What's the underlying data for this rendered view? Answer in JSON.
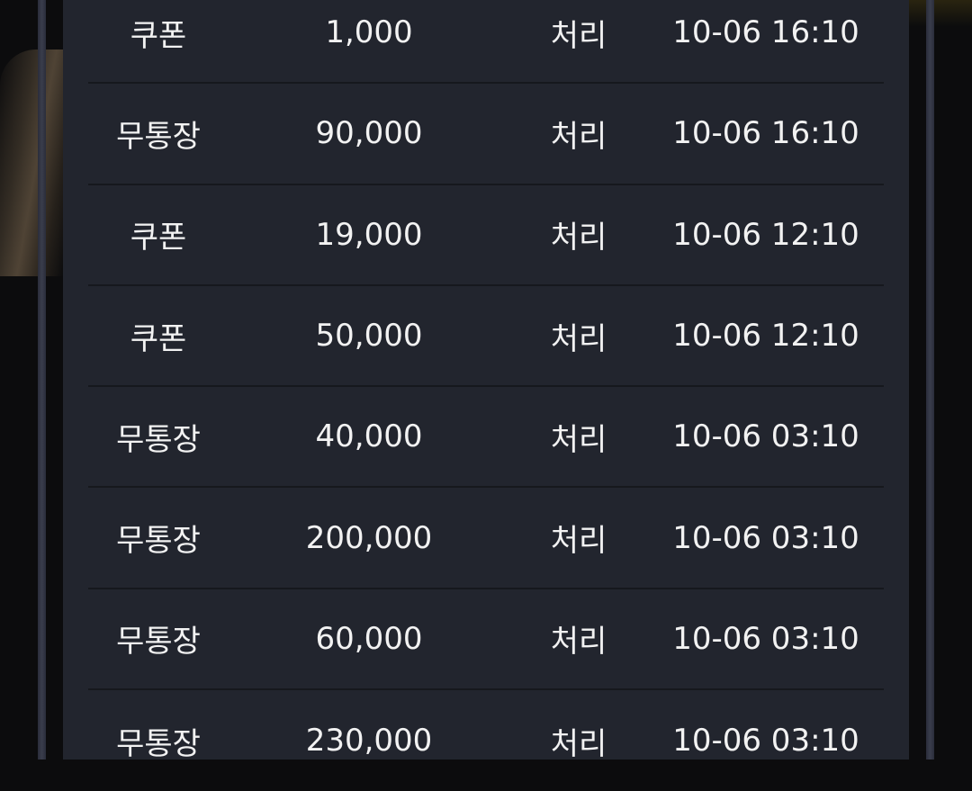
{
  "rows": [
    {
      "type": "쿠폰",
      "amount": "1,000",
      "status": "처리",
      "time": "10-06 16:10"
    },
    {
      "type": "무통장",
      "amount": "90,000",
      "status": "처리",
      "time": "10-06 16:10"
    },
    {
      "type": "쿠폰",
      "amount": "19,000",
      "status": "처리",
      "time": "10-06 12:10"
    },
    {
      "type": "쿠폰",
      "amount": "50,000",
      "status": "처리",
      "time": "10-06 12:10"
    },
    {
      "type": "무통장",
      "amount": "40,000",
      "status": "처리",
      "time": "10-06 03:10"
    },
    {
      "type": "무통장",
      "amount": "200,000",
      "status": "처리",
      "time": "10-06 03:10"
    },
    {
      "type": "무통장",
      "amount": "60,000",
      "status": "처리",
      "time": "10-06 03:10"
    },
    {
      "type": "무통장",
      "amount": "230,000",
      "status": "처리",
      "time": "10-06 03:10"
    }
  ]
}
